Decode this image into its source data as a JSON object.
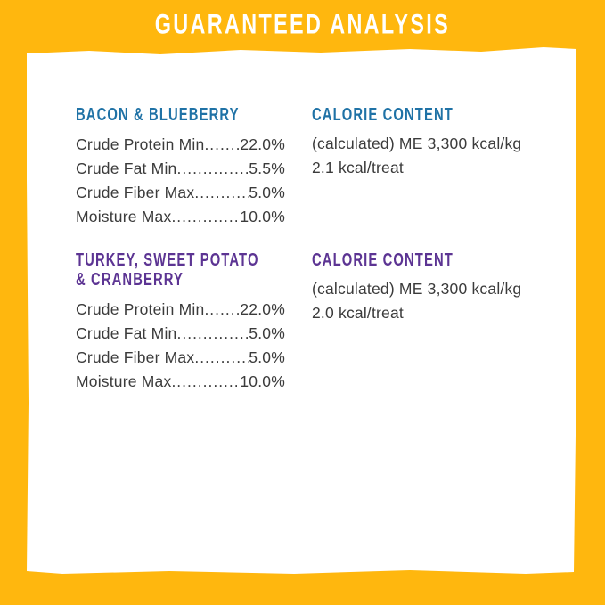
{
  "palette": {
    "orange": "#FFB70E",
    "edge": "#F0A00B",
    "panel": "#FFFFFF",
    "blue": "#1F72A6",
    "purple": "#5C3493",
    "ink": "#3B3B3B"
  },
  "title": "GUARANTEED ANALYSIS",
  "sections": {
    "bacon": {
      "heading_lines": [
        "BACON & BLUEBERRY"
      ],
      "rows": [
        {
          "label": "Crude Protein Min",
          "value": "22.0%"
        },
        {
          "label": "Crude Fat Min",
          "value": "5.5%"
        },
        {
          "label": "Crude Fiber Max",
          "value": "5.0%"
        },
        {
          "label": "Moisture Max",
          "value": "10.0%"
        }
      ]
    },
    "bacon_calories": {
      "heading": "CALORIE CONTENT",
      "line1": "(calculated) ME 3,300 kcal/kg",
      "line2": "2.1 kcal/treat"
    },
    "turkey": {
      "heading_lines": [
        "TURKEY, SWEET POTATO",
        "& CRANBERRY"
      ],
      "rows": [
        {
          "label": "Crude Protein Min",
          "value": "22.0%"
        },
        {
          "label": "Crude Fat Min",
          "value": "5.0%"
        },
        {
          "label": "Crude Fiber Max",
          "value": "5.0%"
        },
        {
          "label": "Moisture Max",
          "value": "10.0%"
        }
      ]
    },
    "turkey_calories": {
      "heading": "CALORIE CONTENT",
      "line1": "(calculated) ME 3,300 kcal/kg",
      "line2": "2.0 kcal/treat"
    }
  }
}
